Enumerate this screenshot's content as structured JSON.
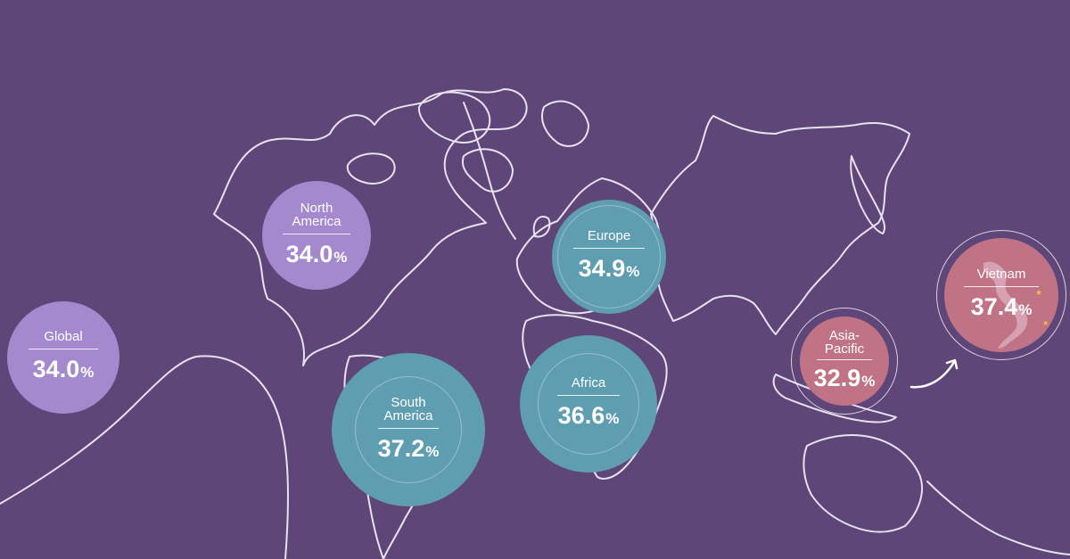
{
  "colors": {
    "background": "#5e4678",
    "purple_bubble": "#a489cf",
    "teal_bubble": "#5f9db0",
    "pink_bubble": "#c17386"
  },
  "regions": [
    {
      "key": "global",
      "name": "Global",
      "value": "34.0",
      "unit": "%",
      "color": "#a489cf"
    },
    {
      "key": "north_america",
      "name": "North\nAmerica",
      "value": "34.0",
      "unit": "%",
      "color": "#a489cf"
    },
    {
      "key": "south_america",
      "name": "South\nAmerica",
      "value": "37.2",
      "unit": "%",
      "color": "#5f9db0"
    },
    {
      "key": "europe",
      "name": "Europe",
      "value": "34.9",
      "unit": "%",
      "color": "#5f9db0"
    },
    {
      "key": "africa",
      "name": "Africa",
      "value": "36.6",
      "unit": "%",
      "color": "#5f9db0"
    },
    {
      "key": "asia_pacific",
      "name": "Asia-\nPacific",
      "value": "32.9",
      "unit": "%",
      "color": "#c17386"
    },
    {
      "key": "vietnam",
      "name": "Vietnam",
      "value": "37.4",
      "unit": "%",
      "color": "#c17386"
    }
  ],
  "icons": {
    "arrow": "curved-arrow-icon",
    "vietnam_silhouette": "vietnam-map-icon"
  }
}
